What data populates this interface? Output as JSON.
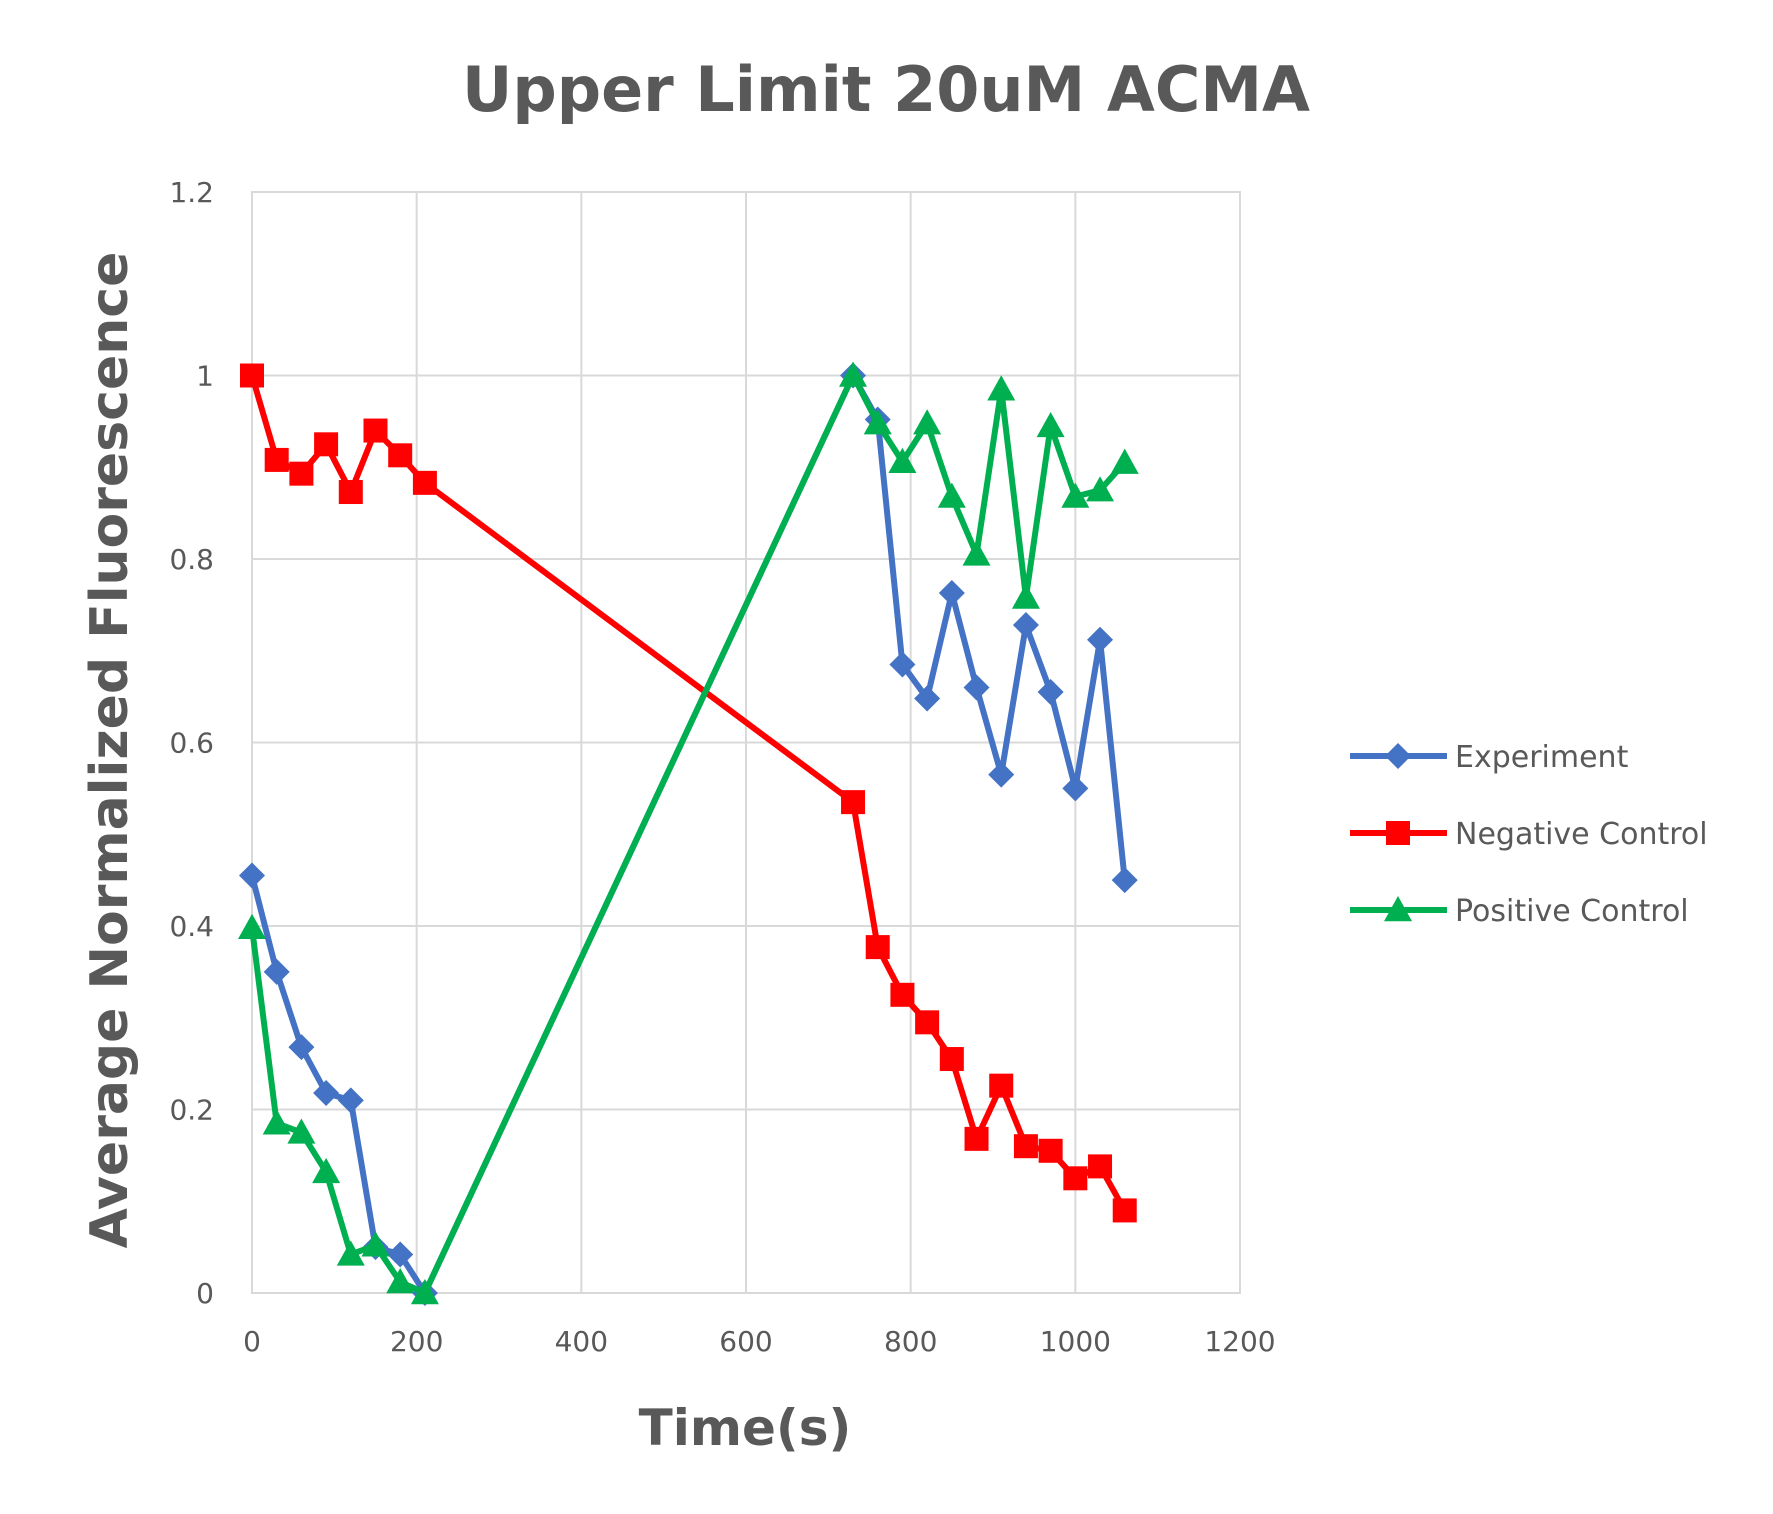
{
  "chart_data": {
    "type": "line",
    "title": "Upper Limit 20uM ACMA",
    "xlabel": "Time(s)",
    "ylabel": "Average Normalized Fluorescence",
    "xlim": [
      0,
      1200
    ],
    "ylim": [
      0,
      1.2
    ],
    "x_ticks": [
      "0",
      "200",
      "400",
      "600",
      "800",
      "1000",
      "1200"
    ],
    "y_ticks": [
      "0",
      "0.2",
      "0.4",
      "0.6",
      "0.8",
      "1",
      "1.2"
    ],
    "x_tick_values": [
      0,
      200,
      400,
      600,
      800,
      1000,
      1200
    ],
    "y_tick_values": [
      0,
      0.2,
      0.4,
      0.6,
      0.8,
      1,
      1.2
    ],
    "grid": true,
    "legend_position": "right",
    "series": [
      {
        "name": "Experiment",
        "color": "#4472c4",
        "marker": "diamond",
        "x": [
          0,
          30,
          60,
          90,
          120,
          150,
          180,
          210,
          730,
          760,
          790,
          820,
          850,
          880,
          910,
          940,
          970,
          1000,
          1030,
          1060
        ],
        "y": [
          0.455,
          0.35,
          0.268,
          0.218,
          0.21,
          0.05,
          0.042,
          0.0,
          1.0,
          0.952,
          0.685,
          0.648,
          0.763,
          0.66,
          0.565,
          0.728,
          0.655,
          0.55,
          0.712,
          0.45
        ]
      },
      {
        "name": "Negative Control",
        "color": "#ff0000",
        "marker": "square",
        "x": [
          0,
          30,
          60,
          90,
          120,
          150,
          180,
          210,
          730,
          760,
          790,
          820,
          850,
          880,
          910,
          940,
          970,
          1000,
          1030,
          1060
        ],
        "y": [
          1.0,
          0.908,
          0.893,
          0.925,
          0.873,
          0.94,
          0.913,
          0.883,
          0.535,
          0.377,
          0.325,
          0.295,
          0.255,
          0.168,
          0.226,
          0.16,
          0.155,
          0.125,
          0.138,
          0.09
        ]
      },
      {
        "name": "Positive Control",
        "color": "#00b050",
        "marker": "triangle",
        "x": [
          0,
          30,
          60,
          90,
          120,
          150,
          180,
          210,
          730,
          760,
          790,
          820,
          850,
          880,
          910,
          940,
          970,
          1000,
          1030,
          1060
        ],
        "y": [
          0.398,
          0.185,
          0.175,
          0.132,
          0.042,
          0.052,
          0.012,
          0.0,
          1.0,
          0.948,
          0.906,
          0.948,
          0.868,
          0.805,
          0.985,
          0.758,
          0.945,
          0.868,
          0.875,
          0.905
        ]
      }
    ]
  }
}
